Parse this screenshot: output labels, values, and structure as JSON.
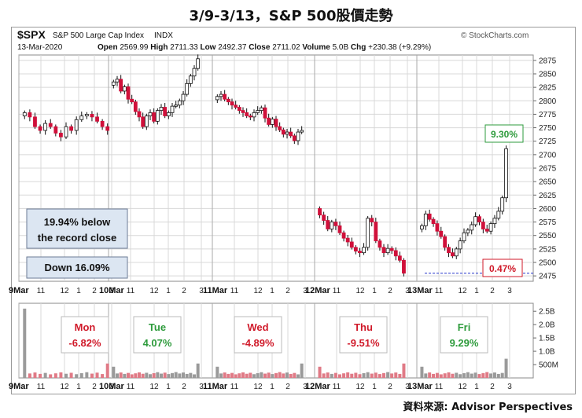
{
  "title": "3/9-3/13，S&P 500股價走勢",
  "source": "資料來源: Advisor Perspectives",
  "header": {
    "symbol": "$SPX",
    "name": "S&P 500 Large Cap Index",
    "exchange": "INDX",
    "date": "13-Mar-2020",
    "open_label": "Open",
    "open": "2569.99",
    "high_label": "High",
    "high": "2711.33",
    "low_label": "Low",
    "low": "2492.37",
    "close_label": "Close",
    "close": "2711.02",
    "volume_label": "Volume",
    "volume": "5.0B",
    "chg_label": "Chg",
    "chg": "+230.38 (+9.29%)",
    "brand": "© StockCharts.com"
  },
  "notes": {
    "record": "19.94% below\nthe record close",
    "down": "Down 16.09%",
    "pct_high": "9.30%",
    "pct_low": "0.47%"
  },
  "colors": {
    "up": "#ffffff",
    "down": "#d0103a",
    "vol_down": "#e07a86",
    "vol_up": "#9a9a9a",
    "grid": "#d8d8d8",
    "green": "#2e9b3c",
    "red": "#d01a2a",
    "box_bg": "#dce6f2",
    "dashed": "#2233cc"
  },
  "chart_data": [
    {
      "type": "candlestick",
      "symbol": "$SPX",
      "interval": "10-minute",
      "ylim": [
        2465,
        2885
      ],
      "yticks": [
        2475,
        2500,
        2525,
        2550,
        2575,
        2600,
        2625,
        2650,
        2675,
        2700,
        2725,
        2750,
        2775,
        2800,
        2825,
        2850,
        2875
      ],
      "day_labels": [
        "9Mar",
        "10Mar",
        "11Mar",
        "12Mar",
        "13Mar"
      ],
      "hour_labels": [
        "11",
        "12",
        "1",
        "2",
        "3"
      ],
      "days": [
        {
          "name": "9Mar",
          "closes": [
            2778,
            2770,
            2752,
            2745,
            2758,
            2752,
            2740,
            2733,
            2752,
            2745,
            2765,
            2772,
            2775,
            2770,
            2762,
            2752,
            2745
          ]
        },
        {
          "name": "10Mar",
          "closes": [
            2835,
            2840,
            2818,
            2826,
            2803,
            2798,
            2780,
            2770,
            2752,
            2772,
            2778,
            2762,
            2782,
            2788,
            2772,
            2778,
            2790,
            2792,
            2800,
            2812,
            2832,
            2846,
            2860,
            2878
          ]
        },
        {
          "name": "11Mar",
          "closes": [
            2808,
            2812,
            2803,
            2798,
            2792,
            2788,
            2782,
            2778,
            2772,
            2770,
            2778,
            2782,
            2787,
            2768,
            2756,
            2766,
            2752,
            2746,
            2738,
            2742,
            2735,
            2726,
            2742,
            2745
          ]
        },
        {
          "name": "12Mar",
          "closes": [
            2588,
            2578,
            2562,
            2575,
            2568,
            2555,
            2545,
            2538,
            2528,
            2521,
            2518,
            2528,
            2582,
            2575,
            2540,
            2528,
            2518,
            2526,
            2522,
            2512,
            2504,
            2480
          ]
        },
        {
          "name": "13Mar",
          "closes": [
            2568,
            2590,
            2580,
            2572,
            2558,
            2548,
            2528,
            2518,
            2512,
            2525,
            2540,
            2555,
            2560,
            2570,
            2585,
            2575,
            2562,
            2558,
            2572,
            2582,
            2595,
            2620,
            2711
          ]
        }
      ],
      "annotations": [
        {
          "text": "9.30%",
          "color": "green",
          "price": 2711
        },
        {
          "text": "0.47%",
          "color": "red",
          "price": 2480
        },
        {
          "text": "19.94% below the record close"
        },
        {
          "text": "Down 16.09%"
        }
      ]
    },
    {
      "type": "bar",
      "series_name": "Volume",
      "ylim": [
        0,
        2800000000
      ],
      "ytick_labels": [
        "2.5B",
        "2.0B",
        "1.5B",
        "1.0B",
        "500M"
      ],
      "ytick_values": [
        2500000000,
        2000000000,
        1500000000,
        1000000000,
        500000000
      ],
      "opening_volume_note": "first bar of 9Mar approx 2.6B",
      "daily_changes": [
        {
          "day": "Mon",
          "change": "-6.82%",
          "color": "red"
        },
        {
          "day": "Tue",
          "change": "4.07%",
          "color": "green"
        },
        {
          "day": "Wed",
          "change": "-4.89%",
          "color": "red"
        },
        {
          "day": "Thu",
          "change": "-9.51%",
          "color": "red"
        },
        {
          "day": "Fri",
          "change": "9.29%",
          "color": "green"
        }
      ]
    }
  ]
}
